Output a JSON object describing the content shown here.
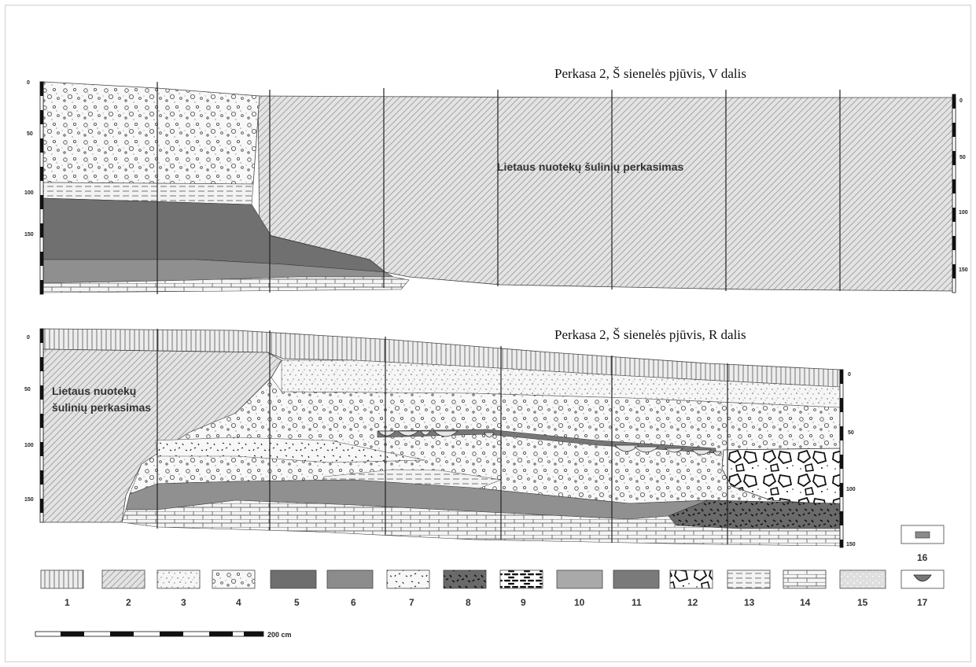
{
  "profile_v": {
    "title": "Perkasa 2, Š sienelės pjūvis, V dalis",
    "label": "Lietaus nuotekų šulinių perkasimas",
    "left_ticks": [
      "0",
      "50",
      "100",
      "150"
    ],
    "right_ticks": [
      "0",
      "50",
      "100",
      "150"
    ]
  },
  "profile_r": {
    "title": "Perkasa 2, Š sienelės pjūvis, R dalis",
    "label_line1": "Lietaus nuotekų",
    "label_line2": "šulinių perkasimas",
    "left_ticks": [
      "0",
      "50",
      "100",
      "150"
    ],
    "right_ticks": [
      "0",
      "50",
      "100",
      "150"
    ]
  },
  "legend": {
    "items": [
      {
        "num": "1",
        "fill": "vertical"
      },
      {
        "num": "2",
        "fill": "diagonal"
      },
      {
        "num": "3",
        "fill": "dots"
      },
      {
        "num": "4",
        "fill": "pebbles"
      },
      {
        "num": "5",
        "fill": "#6e6e6e"
      },
      {
        "num": "6",
        "fill": "#8c8c8c"
      },
      {
        "num": "7",
        "fill": "specks"
      },
      {
        "num": "8",
        "fill": "darkspecks"
      },
      {
        "num": "9",
        "fill": "bricksblack"
      },
      {
        "num": "10",
        "fill": "#a9a9a9"
      },
      {
        "num": "11",
        "fill": "#7a7a7a"
      },
      {
        "num": "12",
        "fill": "stones"
      },
      {
        "num": "13",
        "fill": "dashes"
      },
      {
        "num": "14",
        "fill": "bricks"
      },
      {
        "num": "15",
        "fill": "lightspeck"
      },
      {
        "num": "16",
        "fill": "smallrect"
      },
      {
        "num": "17",
        "fill": "bowl"
      }
    ]
  },
  "scale": {
    "label": "200 cm"
  }
}
